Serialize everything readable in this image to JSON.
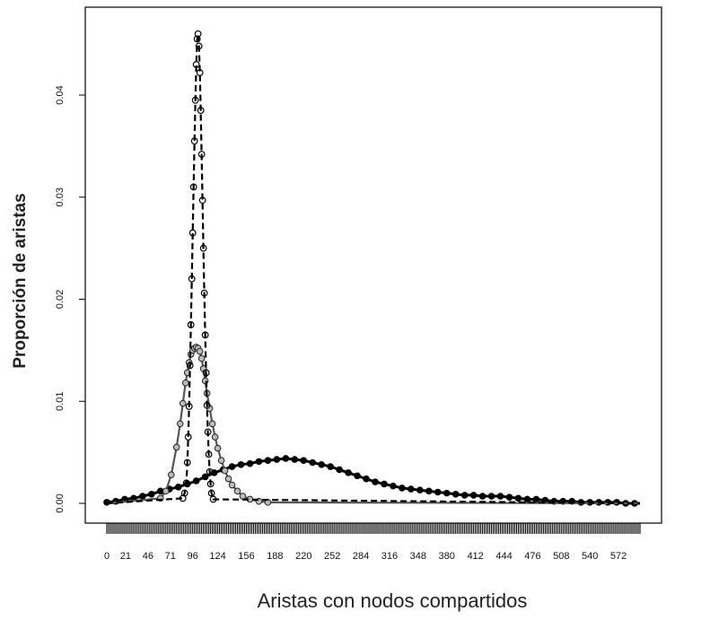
{
  "chart_data": {
    "type": "scatter",
    "xlabel": "Aristas con nodos compartidos",
    "ylabel": "Proporción de aristas",
    "x_ticks": [
      0,
      21,
      46,
      71,
      96,
      124,
      156,
      188,
      220,
      252,
      284,
      316,
      348,
      380,
      412,
      444,
      476,
      508,
      540,
      572
    ],
    "y_ticks": [
      0.0,
      0.01,
      0.02,
      0.03,
      0.04
    ],
    "y_tick_labels": [
      "0.00",
      "0.01",
      "0.02",
      "0.03",
      "0.04"
    ],
    "xlim": [
      0,
      596
    ],
    "ylim": [
      0,
      0.048
    ],
    "grid": false,
    "legend": "none",
    "series": [
      {
        "marker": "open-circle",
        "fit_line": "dashed",
        "color": "#000000",
        "points": [
          [
            85,
            0.0005
          ],
          [
            87,
            0.001
          ],
          [
            89,
            0.002
          ],
          [
            90,
            0.004
          ],
          [
            91,
            0.0065
          ],
          [
            92,
            0.0095
          ],
          [
            93,
            0.0135
          ],
          [
            94,
            0.0175
          ],
          [
            95,
            0.022
          ],
          [
            96,
            0.0265
          ],
          [
            97,
            0.031
          ],
          [
            98,
            0.0355
          ],
          [
            99,
            0.0395
          ],
          [
            100,
            0.043
          ],
          [
            101,
            0.0455
          ],
          [
            102,
            0.046
          ],
          [
            103,
            0.0448
          ],
          [
            104,
            0.0422
          ],
          [
            105,
            0.0385
          ],
          [
            106,
            0.0342
          ],
          [
            107,
            0.0297
          ],
          [
            108,
            0.025
          ],
          [
            109,
            0.0206
          ],
          [
            110,
            0.0165
          ],
          [
            111,
            0.0128
          ],
          [
            112,
            0.0096
          ],
          [
            113,
            0.007
          ],
          [
            114,
            0.0048
          ],
          [
            115,
            0.0031
          ],
          [
            116,
            0.0019
          ],
          [
            117,
            0.001
          ],
          [
            119,
            0.0004
          ]
        ]
      },
      {
        "marker": "gray-circle",
        "fit_line": "solid-gray",
        "color": "#888888",
        "points": [
          [
            60,
            0.0005
          ],
          [
            66,
            0.0012
          ],
          [
            72,
            0.0028
          ],
          [
            78,
            0.0055
          ],
          [
            82,
            0.0078
          ],
          [
            85,
            0.0098
          ],
          [
            88,
            0.0118
          ],
          [
            90,
            0.0128
          ],
          [
            92,
            0.0138
          ],
          [
            94,
            0.0146
          ],
          [
            96,
            0.015
          ],
          [
            98,
            0.0152
          ],
          [
            100,
            0.0153
          ],
          [
            102,
            0.0152
          ],
          [
            104,
            0.0149
          ],
          [
            106,
            0.0142
          ],
          [
            108,
            0.0132
          ],
          [
            110,
            0.012
          ],
          [
            112,
            0.0108
          ],
          [
            115,
            0.0093
          ],
          [
            118,
            0.0078
          ],
          [
            121,
            0.0065
          ],
          [
            124,
            0.0054
          ],
          [
            128,
            0.0042
          ],
          [
            132,
            0.0032
          ],
          [
            136,
            0.0024
          ],
          [
            140,
            0.0018
          ],
          [
            146,
            0.0012
          ],
          [
            152,
            0.0007
          ],
          [
            160,
            0.0004
          ],
          [
            170,
            0.0002
          ],
          [
            180,
            0.0001
          ]
        ]
      },
      {
        "marker": "filled-circle",
        "fit_line": "solid-thick",
        "color": "#000000",
        "points": [
          [
            0,
            0.0001
          ],
          [
            10,
            0.0002
          ],
          [
            20,
            0.0004
          ],
          [
            30,
            0.0005
          ],
          [
            40,
            0.0007
          ],
          [
            50,
            0.0009
          ],
          [
            60,
            0.0012
          ],
          [
            70,
            0.0014
          ],
          [
            80,
            0.0016
          ],
          [
            90,
            0.0019
          ],
          [
            100,
            0.0022
          ],
          [
            110,
            0.0026
          ],
          [
            120,
            0.003
          ],
          [
            130,
            0.0033
          ],
          [
            140,
            0.0036
          ],
          [
            150,
            0.0038
          ],
          [
            160,
            0.0039
          ],
          [
            170,
            0.0041
          ],
          [
            180,
            0.0042
          ],
          [
            190,
            0.0043
          ],
          [
            200,
            0.0044
          ],
          [
            210,
            0.0043
          ],
          [
            220,
            0.0042
          ],
          [
            230,
            0.004
          ],
          [
            240,
            0.0038
          ],
          [
            250,
            0.0036
          ],
          [
            260,
            0.0033
          ],
          [
            270,
            0.003
          ],
          [
            280,
            0.0027
          ],
          [
            290,
            0.0024
          ],
          [
            300,
            0.0021
          ],
          [
            310,
            0.0019
          ],
          [
            320,
            0.0017
          ],
          [
            330,
            0.0015
          ],
          [
            340,
            0.0014
          ],
          [
            350,
            0.0013
          ],
          [
            360,
            0.0012
          ],
          [
            370,
            0.0011
          ],
          [
            380,
            0.001
          ],
          [
            390,
            0.0009
          ],
          [
            400,
            0.0008
          ],
          [
            410,
            0.0008
          ],
          [
            420,
            0.0007
          ],
          [
            430,
            0.0007
          ],
          [
            440,
            0.0007
          ],
          [
            450,
            0.0006
          ],
          [
            460,
            0.0005
          ],
          [
            470,
            0.0004
          ],
          [
            480,
            0.0004
          ],
          [
            490,
            0.0003
          ],
          [
            500,
            0.0002
          ],
          [
            510,
            0.0002
          ],
          [
            520,
            0.0002
          ],
          [
            530,
            0.0001
          ],
          [
            540,
            0.0001
          ],
          [
            550,
            0.0001
          ],
          [
            560,
            0.0001
          ],
          [
            570,
            0.0001
          ],
          [
            580,
            0.0
          ],
          [
            590,
            0.0
          ]
        ]
      }
    ]
  }
}
